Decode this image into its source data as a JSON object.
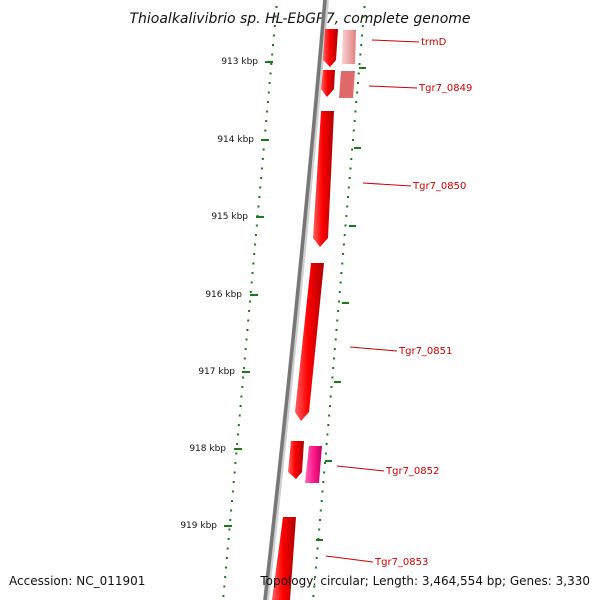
{
  "title": "Thioalkalivibrio sp. HL-EbGR7, complete genome",
  "accession": "Accession: NC_011901",
  "summary": "Topology: circular; Length: 3,464,554 bp; Genes: 3,330",
  "scale_labels": [
    "913 kbp",
    "914 kbp",
    "915 kbp",
    "916 kbp",
    "917 kbp",
    "918 kbp",
    "919 kbp"
  ],
  "genes": [
    {
      "name": "trmD",
      "strand": "-",
      "color": "#ff0000",
      "shade_color": "#f0a0a0"
    },
    {
      "name": "Tgr7_0849",
      "strand": "-",
      "color": "#ff0000",
      "shade_color": "#e06060"
    },
    {
      "name": "Tgr7_0850",
      "strand": "-",
      "color": "#ff0000"
    },
    {
      "name": "Tgr7_0851",
      "strand": "-",
      "color": "#ff0000"
    },
    {
      "name": "Tgr7_0852",
      "strand": "-",
      "color": "#ff0000",
      "shade_color": "#ff1a8c"
    },
    {
      "name": "Tgr7_0853",
      "strand": "+",
      "color": "#ff0000"
    }
  ],
  "colors": {
    "backbone": "#777777",
    "tick": "#1a7a1a",
    "gene": "#ff0000",
    "label": "#cc0000"
  }
}
